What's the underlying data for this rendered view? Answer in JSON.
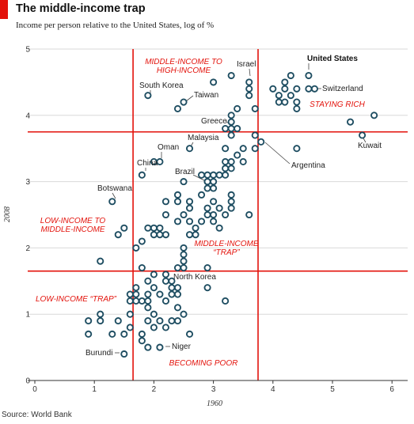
{
  "title": "The middle-income trap",
  "subtitle": "Income per person relative to the United States, log of %",
  "source": "Source: World Bank",
  "colors": {
    "accent": "#e3120b",
    "marker": "#1f4e62",
    "grid": "#d8d8d8"
  },
  "chart_data": {
    "type": "scatter",
    "xlabel": "1960",
    "ylabel": "2008",
    "xlim": [
      -0.1,
      6.4
    ],
    "ylim": [
      0,
      5
    ],
    "xticks": [
      "0",
      "1",
      "2",
      "3",
      "4",
      "5",
      "6"
    ],
    "yticks": [
      "0",
      "1",
      "2",
      "3",
      "4",
      "5"
    ],
    "grid": "horizontal",
    "thresholds": {
      "x": [
        1.65,
        3.75
      ],
      "y": [
        1.65,
        3.75
      ]
    },
    "regions": [
      {
        "lines": [
          "MIDDLE-INCOME TO",
          "HIGH-INCOME"
        ]
      },
      {
        "lines": [
          "STAYING RICH"
        ]
      },
      {
        "lines": [
          "LOW-INCOME TO",
          "MIDDLE-INCOME"
        ]
      },
      {
        "lines": [
          "MIDDLE-INCOME",
          "“TRAP”"
        ]
      },
      {
        "lines": [
          "LOW-INCOME “TRAP”"
        ]
      },
      {
        "lines": [
          "BECOMING POOR"
        ]
      }
    ],
    "labels": [
      {
        "text": "United States",
        "x": 4.6,
        "y": 4.6
      },
      {
        "text": "Israel",
        "x": 3.6,
        "y": 4.4
      },
      {
        "text": "Switzerland",
        "x": 4.7,
        "y": 4.4
      },
      {
        "text": "South Korea",
        "x": 1.9,
        "y": 4.3
      },
      {
        "text": "Taiwan",
        "x": 2.5,
        "y": 4.2
      },
      {
        "text": "Greece",
        "x": 3.3,
        "y": 3.9
      },
      {
        "text": "Malaysia",
        "x": 2.6,
        "y": 3.5
      },
      {
        "text": "Oman",
        "x": 2.1,
        "y": 3.3
      },
      {
        "text": "China",
        "x": 1.8,
        "y": 3.1
      },
      {
        "text": "Brazil",
        "x": 2.9,
        "y": 3.0
      },
      {
        "text": "Kuwait",
        "x": 5.5,
        "y": 3.7
      },
      {
        "text": "Argentina",
        "x": 3.7,
        "y": 3.7
      },
      {
        "text": "Botswana",
        "x": 1.3,
        "y": 2.7
      },
      {
        "text": "North Korea",
        "x": 2.3,
        "y": 1.5
      },
      {
        "text": "Niger",
        "x": 2.1,
        "y": 0.5
      },
      {
        "text": "Burundi",
        "x": 1.5,
        "y": 0.4
      }
    ],
    "points": [
      [
        4.6,
        4.6
      ],
      [
        3.6,
        4.4
      ],
      [
        4.7,
        4.4
      ],
      [
        1.9,
        4.3
      ],
      [
        2.5,
        4.2
      ],
      [
        3.3,
        3.9
      ],
      [
        2.6,
        3.5
      ],
      [
        2.1,
        3.3
      ],
      [
        1.8,
        3.1
      ],
      [
        2.9,
        3.0
      ],
      [
        5.5,
        3.7
      ],
      [
        3.7,
        3.7
      ],
      [
        1.3,
        2.7
      ],
      [
        2.3,
        1.5
      ],
      [
        2.1,
        0.5
      ],
      [
        1.5,
        0.4
      ],
      [
        3.0,
        4.5
      ],
      [
        3.3,
        4.6
      ],
      [
        3.6,
        4.5
      ],
      [
        3.6,
        4.3
      ],
      [
        3.7,
        4.1
      ],
      [
        3.4,
        4.1
      ],
      [
        3.3,
        4.0
      ],
      [
        2.4,
        4.1
      ],
      [
        4.0,
        4.4
      ],
      [
        4.1,
        4.3
      ],
      [
        4.2,
        4.5
      ],
      [
        4.2,
        4.4
      ],
      [
        4.3,
        4.3
      ],
      [
        4.4,
        4.4
      ],
      [
        4.1,
        4.2
      ],
      [
        4.2,
        4.2
      ],
      [
        4.4,
        4.2
      ],
      [
        4.3,
        4.6
      ],
      [
        4.4,
        4.1
      ],
      [
        4.6,
        4.4
      ],
      [
        5.3,
        3.9
      ],
      [
        5.7,
        4.0
      ],
      [
        4.4,
        3.5
      ],
      [
        3.8,
        3.6
      ],
      [
        3.7,
        3.5
      ],
      [
        3.2,
        3.8
      ],
      [
        3.3,
        3.8
      ],
      [
        3.4,
        3.8
      ],
      [
        3.3,
        3.7
      ],
      [
        3.2,
        3.5
      ],
      [
        3.5,
        3.5
      ],
      [
        3.4,
        3.4
      ],
      [
        3.5,
        3.3
      ],
      [
        3.2,
        3.3
      ],
      [
        3.3,
        3.3
      ],
      [
        3.3,
        3.2
      ],
      [
        3.2,
        3.2
      ],
      [
        2.0,
        3.3
      ],
      [
        2.8,
        3.1
      ],
      [
        2.9,
        3.1
      ],
      [
        3.0,
        3.1
      ],
      [
        3.1,
        3.1
      ],
      [
        2.9,
        3.0
      ],
      [
        3.0,
        3.0
      ],
      [
        3.2,
        3.1
      ],
      [
        2.5,
        3.0
      ],
      [
        2.9,
        2.9
      ],
      [
        3.0,
        2.9
      ],
      [
        2.8,
        2.8
      ],
      [
        3.3,
        2.8
      ],
      [
        2.4,
        2.8
      ],
      [
        2.6,
        2.7
      ],
      [
        3.0,
        2.7
      ],
      [
        2.2,
        2.7
      ],
      [
        3.3,
        2.7
      ],
      [
        2.4,
        2.7
      ],
      [
        2.6,
        2.6
      ],
      [
        2.9,
        2.6
      ],
      [
        3.1,
        2.6
      ],
      [
        3.3,
        2.6
      ],
      [
        2.9,
        2.5
      ],
      [
        2.2,
        2.5
      ],
      [
        2.5,
        2.5
      ],
      [
        3.0,
        2.5
      ],
      [
        3.2,
        2.5
      ],
      [
        3.6,
        2.5
      ],
      [
        2.6,
        2.4
      ],
      [
        2.8,
        2.4
      ],
      [
        3.0,
        2.4
      ],
      [
        2.4,
        2.4
      ],
      [
        3.1,
        2.3
      ],
      [
        2.7,
        2.3
      ],
      [
        2.6,
        2.2
      ],
      [
        2.7,
        2.2
      ],
      [
        1.9,
        2.3
      ],
      [
        2.0,
        2.3
      ],
      [
        2.1,
        2.3
      ],
      [
        2.0,
        2.2
      ],
      [
        2.1,
        2.2
      ],
      [
        1.5,
        2.3
      ],
      [
        1.4,
        2.2
      ],
      [
        2.2,
        2.2
      ],
      [
        1.8,
        2.1
      ],
      [
        1.7,
        2.0
      ],
      [
        2.5,
        2.0
      ],
      [
        2.5,
        1.9
      ],
      [
        2.5,
        1.8
      ],
      [
        2.9,
        1.7
      ],
      [
        2.4,
        1.7
      ],
      [
        2.5,
        1.7
      ],
      [
        1.1,
        1.8
      ],
      [
        1.8,
        1.7
      ],
      [
        2.0,
        1.6
      ],
      [
        2.2,
        1.6
      ],
      [
        1.9,
        1.5
      ],
      [
        2.2,
        1.5
      ],
      [
        2.3,
        1.4
      ],
      [
        2.4,
        1.4
      ],
      [
        2.9,
        1.4
      ],
      [
        1.7,
        1.4
      ],
      [
        2.0,
        1.4
      ],
      [
        1.7,
        1.3
      ],
      [
        1.9,
        1.3
      ],
      [
        2.1,
        1.3
      ],
      [
        2.3,
        1.3
      ],
      [
        2.4,
        1.3
      ],
      [
        1.6,
        1.3
      ],
      [
        1.6,
        1.2
      ],
      [
        1.7,
        1.2
      ],
      [
        1.8,
        1.2
      ],
      [
        1.9,
        1.2
      ],
      [
        2.2,
        1.2
      ],
      [
        1.9,
        1.1
      ],
      [
        2.4,
        1.1
      ],
      [
        3.2,
        1.2
      ],
      [
        1.6,
        1.0
      ],
      [
        2.5,
        1.0
      ],
      [
        2.0,
        1.0
      ],
      [
        1.1,
        1.0
      ],
      [
        1.9,
        0.9
      ],
      [
        2.1,
        0.9
      ],
      [
        2.3,
        0.9
      ],
      [
        2.4,
        0.9
      ],
      [
        0.9,
        0.9
      ],
      [
        1.1,
        0.9
      ],
      [
        1.4,
        0.9
      ],
      [
        2.2,
        0.8
      ],
      [
        1.6,
        0.8
      ],
      [
        2.0,
        0.8
      ],
      [
        1.8,
        0.7
      ],
      [
        0.9,
        0.7
      ],
      [
        1.3,
        0.7
      ],
      [
        1.5,
        0.7
      ],
      [
        2.6,
        0.7
      ],
      [
        1.8,
        0.6
      ],
      [
        1.9,
        0.5
      ]
    ]
  }
}
